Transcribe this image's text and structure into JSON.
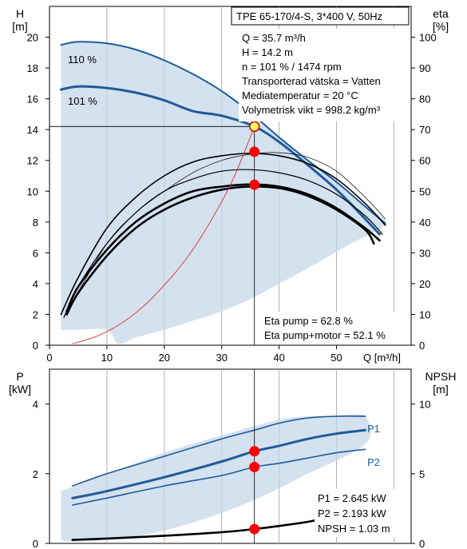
{
  "chart_data": [
    {
      "type": "line",
      "panel": "head-efficiency",
      "ylabel_left": [
        "H",
        "[m]"
      ],
      "ylabel_right": [
        "eta",
        "[%]"
      ],
      "xlabel": "Q [m³/h]",
      "xlim": [
        0,
        63
      ],
      "ylim_left": [
        0,
        22
      ],
      "ylim_right": [
        0,
        110
      ],
      "x_ticks": [
        0,
        10,
        20,
        30,
        40,
        50
      ],
      "y_ticks_left": [
        0,
        2,
        4,
        6,
        8,
        10,
        12,
        14,
        16,
        18,
        20
      ],
      "y_ticks_right": [
        0,
        10,
        20,
        30,
        40,
        50,
        60,
        70,
        80,
        90,
        100
      ],
      "grid": "vertical",
      "title": "TPE 65-170/4-S, 3*400 V, 50Hz",
      "info_lines": [
        "Q = 35.7 m³/h",
        "H = 14.2 m",
        "n = 101 % / 1474 rpm",
        "Transporterad vätska = Vatten",
        "Mediatemperatur = 20 °C",
        "Volymetrisk vikt = 998.2 kg/m³"
      ],
      "result_lines": [
        "Eta pump = 62.8 %",
        "Eta pump+motor = 52.1 %"
      ],
      "curve_labels": [
        "110 %",
        "101 %"
      ],
      "series": [
        {
          "name": "110 %",
          "axis": "left",
          "x": [
            2,
            5,
            10,
            15,
            20,
            25,
            30,
            35,
            40,
            45,
            50,
            55,
            58.5
          ],
          "y": [
            19.5,
            19.7,
            19.6,
            19.2,
            18.5,
            17.6,
            16.5,
            15.1,
            13.5,
            12.0,
            10.6,
            9.0,
            7.9
          ]
        },
        {
          "name": "101 %",
          "axis": "left",
          "x": [
            2,
            5,
            10,
            15,
            20,
            25,
            30,
            35.7,
            40,
            45,
            50,
            55,
            57.5
          ],
          "y": [
            16.6,
            16.8,
            16.7,
            16.4,
            15.9,
            15.2,
            14.9,
            14.2,
            13.2,
            11.7,
            10.1,
            8.2,
            7.2
          ]
        },
        {
          "name": "",
          "axis": "right",
          "x": [
            2,
            5,
            10,
            15,
            20,
            25,
            30,
            35,
            40,
            45,
            50,
            55,
            58.5
          ],
          "y": [
            10,
            22,
            38,
            48,
            55,
            59.5,
            61.5,
            62.3,
            61.5,
            59,
            54,
            46,
            39
          ]
        },
        {
          "name": "",
          "axis": "right",
          "x": [
            2.5,
            5,
            10,
            15,
            20,
            25,
            30,
            35,
            40,
            45,
            50,
            55,
            58
          ],
          "y": [
            9,
            19,
            33,
            43,
            50,
            54,
            56.5,
            57,
            56,
            53.5,
            49,
            42,
            36
          ]
        },
        {
          "name": "",
          "axis": "right",
          "x": [
            3,
            5,
            10,
            15,
            20,
            25,
            30,
            35,
            40,
            45,
            50,
            55,
            57.5
          ],
          "y": [
            11,
            19,
            31,
            40,
            46,
            50,
            51.5,
            52.2,
            51.5,
            49,
            44.5,
            38,
            34
          ]
        },
        {
          "name": "",
          "axis": "right",
          "x": [
            3,
            5,
            10,
            15,
            20,
            25,
            30,
            35,
            40,
            45,
            50,
            55,
            56.5
          ],
          "y": [
            10,
            17,
            29,
            38,
            44,
            48,
            50.5,
            51.5,
            51,
            48.5,
            44,
            37.5,
            33
          ]
        },
        {
          "name": "",
          "axis": "right",
          "x": [
            4,
            10,
            15,
            20,
            25,
            30,
            35,
            40,
            45,
            50,
            55,
            58.5
          ],
          "y": [
            14,
            33,
            43,
            50,
            56,
            60,
            62,
            62.5,
            61,
            56.5,
            48,
            41
          ]
        },
        {
          "name": "",
          "axis": "left",
          "x": [
            4,
            8,
            12,
            16,
            20,
            24,
            28,
            32,
            35.7
          ],
          "y": [
            0.1,
            0.55,
            1.3,
            2.4,
            3.9,
            5.7,
            8.0,
            10.8,
            14.2
          ]
        }
      ],
      "operating_points": [
        {
          "x": 35.7,
          "y": 14.2,
          "axis": "left"
        },
        {
          "x": 35.7,
          "y": 62.8,
          "axis": "right"
        },
        {
          "x": 35.7,
          "y": 52.1,
          "axis": "right"
        }
      ],
      "region": {
        "x": [
          2,
          5,
          10,
          15,
          20,
          25,
          30,
          35,
          40,
          45,
          50,
          55,
          58.5,
          52,
          45,
          40,
          35,
          30,
          25,
          20,
          15,
          12,
          10,
          5,
          2
        ],
        "y": [
          19.5,
          19.7,
          19.6,
          19.2,
          18.5,
          17.6,
          16.5,
          15.1,
          13.5,
          12.0,
          10.6,
          9.0,
          7.9,
          6.5,
          5.0,
          4.0,
          3.0,
          2.2,
          1.6,
          1.0,
          0.5,
          0.1,
          1.0,
          1.0,
          1.0
        ]
      }
    },
    {
      "type": "line",
      "panel": "power-npsh",
      "ylabel_left": [
        "P",
        "[kW]"
      ],
      "ylabel_right": [
        "NPSH",
        "[m]"
      ],
      "xlim": [
        0,
        63
      ],
      "ylim_left": [
        0,
        5
      ],
      "ylim_right": [
        0,
        12.5
      ],
      "y_ticks_left": [
        0,
        2,
        4
      ],
      "y_ticks_right": [
        0,
        5,
        10
      ],
      "grid": "vertical",
      "result_lines": [
        "P1 = 2.645 kW",
        "P2 = 2.193 kW",
        "NPSH = 1.03 m"
      ],
      "series": [
        {
          "name": "P1",
          "axis": "left",
          "x": [
            4,
            10,
            20,
            30,
            35.7,
            40,
            45,
            50,
            55
          ],
          "y": [
            1.3,
            1.5,
            1.9,
            2.35,
            2.645,
            2.8,
            3.0,
            3.15,
            3.25
          ]
        },
        {
          "name": "",
          "axis": "left",
          "x": [
            4,
            10,
            20,
            30,
            35.7,
            40,
            45,
            50,
            55
          ],
          "y": [
            1.65,
            2.0,
            2.5,
            3.0,
            3.25,
            3.45,
            3.6,
            3.65,
            3.65
          ]
        },
        {
          "name": "P2",
          "axis": "left",
          "x": [
            4,
            10,
            20,
            30,
            35.7,
            40,
            45,
            50,
            55
          ],
          "y": [
            1.1,
            1.3,
            1.65,
            1.95,
            2.193,
            2.3,
            2.45,
            2.6,
            2.7
          ]
        },
        {
          "name": "NPSH",
          "axis": "right",
          "x": [
            4,
            10,
            20,
            30,
            35.7,
            40,
            45,
            48
          ],
          "y": [
            0.25,
            0.35,
            0.55,
            0.8,
            1.03,
            1.25,
            1.55,
            1.8
          ]
        }
      ],
      "series_labels": [
        "P1",
        "P2"
      ],
      "operating_points": [
        {
          "x": 35.7,
          "y": 2.645,
          "axis": "left"
        },
        {
          "x": 35.7,
          "y": 2.193,
          "axis": "left"
        },
        {
          "x": 35.7,
          "y": 1.03,
          "axis": "right"
        }
      ],
      "region": {
        "x": [
          2,
          10,
          20,
          30,
          40,
          45,
          50,
          55,
          55,
          45,
          35,
          25,
          15,
          5,
          2
        ],
        "y": [
          1.5,
          2.0,
          2.6,
          3.1,
          3.55,
          3.65,
          3.65,
          3.65,
          2.85,
          2.0,
          1.2,
          0.6,
          0.2,
          0.05,
          0.1
        ]
      }
    }
  ],
  "colors": {
    "accent": "#1f5c99",
    "region": "#c5d7ea",
    "point": "#ff0000",
    "axis": "#000000"
  }
}
